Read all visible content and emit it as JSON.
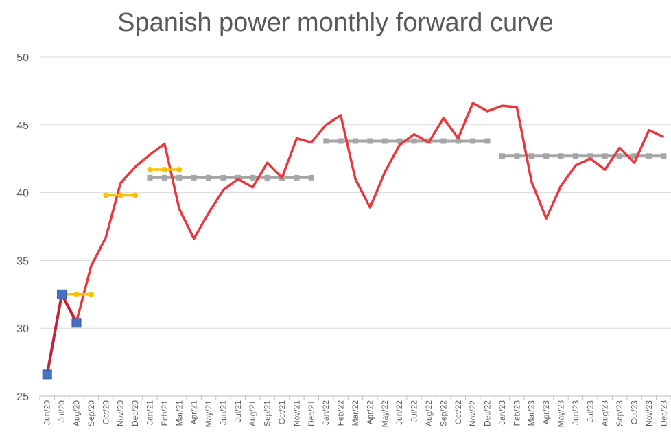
{
  "chart_data": {
    "type": "line",
    "title": "Spanish power monthly forward curve",
    "xlabel": "",
    "ylabel": "",
    "ylim": [
      25,
      50
    ],
    "yticks": [
      25,
      30,
      35,
      40,
      45,
      50
    ],
    "grid": true,
    "legend": "none",
    "categories": [
      "Jun/20",
      "Jul/20",
      "Aug/20",
      "Sep/20",
      "Oct/20",
      "Nov/20",
      "Dec/20",
      "Jan/21",
      "Feb/21",
      "Mar/21",
      "Apr/21",
      "May/21",
      "Jun/21",
      "Jul/21",
      "Aug/21",
      "Sep/21",
      "Oct/21",
      "Nov/21",
      "Dec/21",
      "Jan/22",
      "Feb/22",
      "Mar/22",
      "Apr/22",
      "May/22",
      "Jun/22",
      "Jul/22",
      "Aug/22",
      "Sep/22",
      "Oct/22",
      "Nov/22",
      "Dec/22",
      "Jan/23",
      "Feb/23",
      "Mar/23",
      "Apr/23",
      "May/23",
      "Jun/23",
      "Jul/23",
      "Aug/23",
      "Sep/23",
      "Oct/23",
      "Nov/23",
      "Dec/23"
    ],
    "series": [
      {
        "kind": "monthly-forward",
        "color": "#e8383d",
        "values": [
          26.6,
          32.5,
          30.5,
          34.6,
          36.7,
          40.7,
          41.9,
          42.8,
          43.6,
          38.8,
          36.6,
          38.5,
          40.2,
          41.0,
          40.4,
          42.2,
          41.1,
          44.0,
          43.7,
          45.0,
          45.7,
          41.0,
          38.9,
          41.5,
          43.5,
          44.3,
          43.7,
          45.5,
          44.0,
          46.6,
          46.0,
          46.4,
          46.3,
          40.8,
          38.1,
          40.5,
          42.0,
          42.5,
          41.7,
          43.3,
          42.2,
          44.6,
          44.1
        ]
      },
      {
        "kind": "settled-spot",
        "color": "#c0243a",
        "marker_color": "#4472c4",
        "marker": "square",
        "values": [
          26.6,
          32.5,
          30.4,
          null,
          null,
          null,
          null,
          null,
          null,
          null,
          null,
          null,
          null,
          null,
          null,
          null,
          null,
          null,
          null,
          null,
          null,
          null,
          null,
          null,
          null,
          null,
          null,
          null,
          null,
          null,
          null,
          null,
          null,
          null,
          null,
          null,
          null,
          null,
          null,
          null,
          null,
          null,
          null
        ]
      },
      {
        "kind": "quarterly-forward",
        "color": "#ffc000",
        "marker": "circle",
        "segments": [
          {
            "from": "Jul/20",
            "to": "Sep/20",
            "value": 32.5
          },
          {
            "from": "Oct/20",
            "to": "Dec/20",
            "value": 39.8
          },
          {
            "from": "Jan/21",
            "to": "Mar/21",
            "value": 41.7
          }
        ]
      },
      {
        "kind": "yearly-forward",
        "color": "#a6a6a6",
        "marker": "square",
        "segments": [
          {
            "from": "Jan/21",
            "to": "Dec/21",
            "value": 41.1
          },
          {
            "from": "Jan/22",
            "to": "Dec/22",
            "value": 43.8
          },
          {
            "from": "Jan/23",
            "to": "Dec/23",
            "value": 42.7
          }
        ]
      }
    ]
  }
}
